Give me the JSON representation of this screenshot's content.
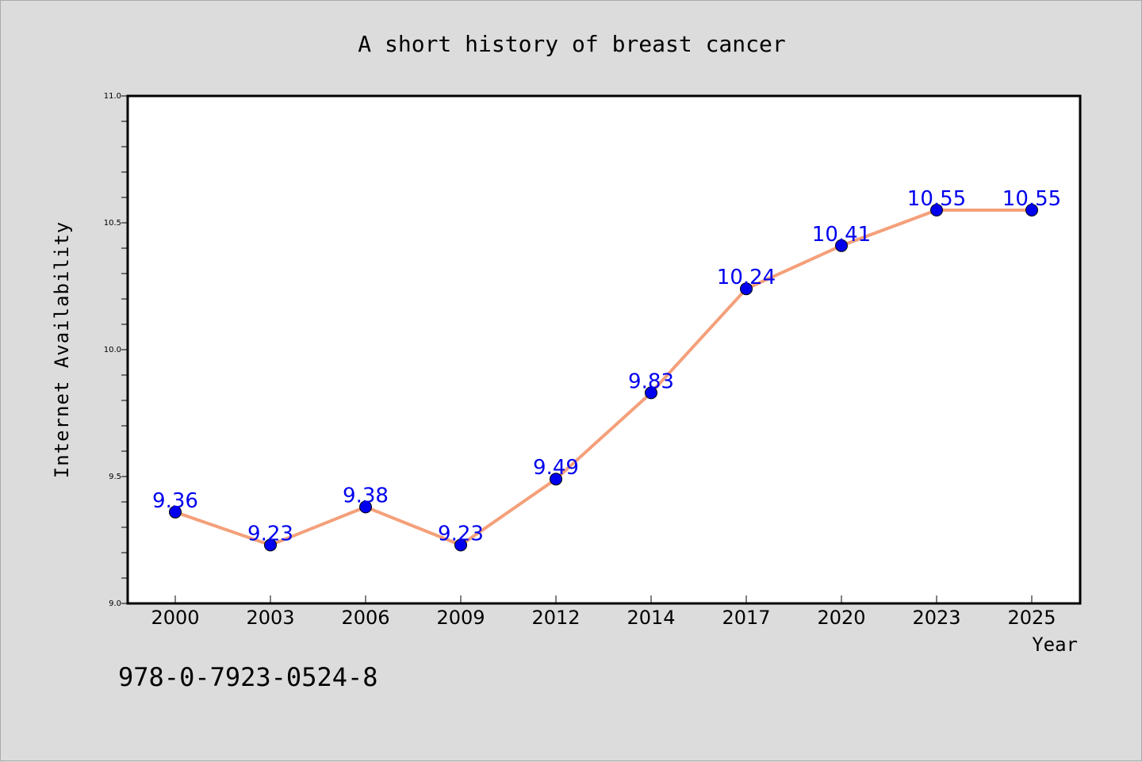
{
  "chart_data": {
    "type": "line",
    "title": "A short history of breast cancer",
    "xlabel": "Year",
    "ylabel": "Internet Availability",
    "categories": [
      "2000",
      "2003",
      "2006",
      "2009",
      "2012",
      "2014",
      "2017",
      "2020",
      "2023",
      "2025"
    ],
    "values": [
      9.36,
      9.23,
      9.38,
      9.23,
      9.49,
      9.83,
      10.24,
      10.41,
      10.55,
      10.55
    ],
    "data_labels": [
      "9.36",
      "9.23",
      "9.38",
      "9.23",
      "9.49",
      "9.83",
      "10.24",
      "10.41",
      "10.55",
      "10.55"
    ],
    "ylim": [
      9.0,
      11.0
    ],
    "y_ticks": [
      "9.0",
      "9.5",
      "10.0",
      "10.5",
      "11.0"
    ],
    "grid": false,
    "line_color": "#f4a07a",
    "marker_color": "#0000ee",
    "label_color": "#0000ee"
  },
  "footer": {
    "isbn": "978-0-7923-0524-8"
  }
}
